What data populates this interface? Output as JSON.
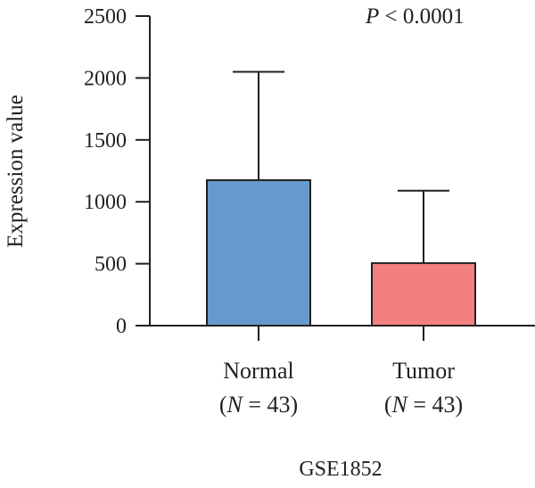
{
  "chart_data": {
    "type": "bar",
    "categories": [
      "Normal",
      "Tumor"
    ],
    "category_counts": [
      "(N = 43)",
      "(N = 43)"
    ],
    "count_prefix": "(",
    "count_var": "N",
    "count_eq": " = ",
    "count_suffix": ")",
    "count_values": [
      "43",
      "43"
    ],
    "values": [
      1175,
      505
    ],
    "error_upper": [
      2050,
      1090
    ],
    "colors": [
      "#6699cc",
      "#f47f7f"
    ],
    "ylabel": "Expression value",
    "ylim": [
      0,
      2500
    ],
    "yticks": [
      0,
      500,
      1000,
      1500,
      2000,
      2500
    ],
    "yticklabels": [
      "0",
      "500",
      "1000",
      "1500",
      "2000",
      "2500"
    ],
    "annotation": {
      "p_symbol": "P",
      "p_rest": " < 0.0001"
    },
    "xlabel": "GSE1852",
    "grid": false,
    "legend": "none"
  }
}
